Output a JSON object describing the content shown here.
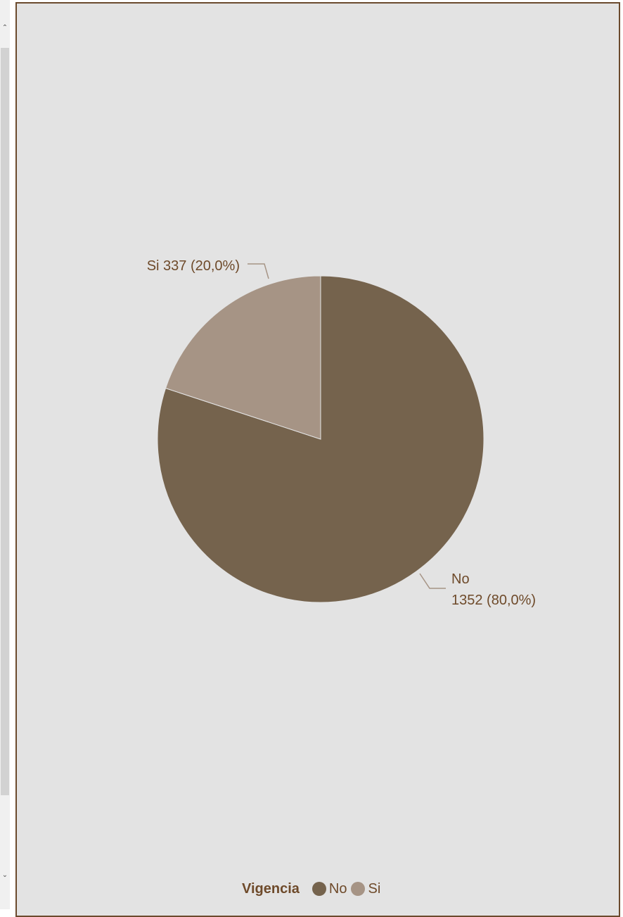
{
  "chart_data": {
    "type": "pie",
    "legend_title": "Vigencia",
    "legend_position": "bottom",
    "slices": [
      {
        "name": "No",
        "value": 1352,
        "percent_label": "80,0%",
        "color": "#75634d"
      },
      {
        "name": "Si",
        "value": 337,
        "percent_label": "20,0%",
        "color": "#a69485"
      }
    ]
  },
  "scrollbar": {
    "up_glyph": "^",
    "down_glyph": "v"
  }
}
